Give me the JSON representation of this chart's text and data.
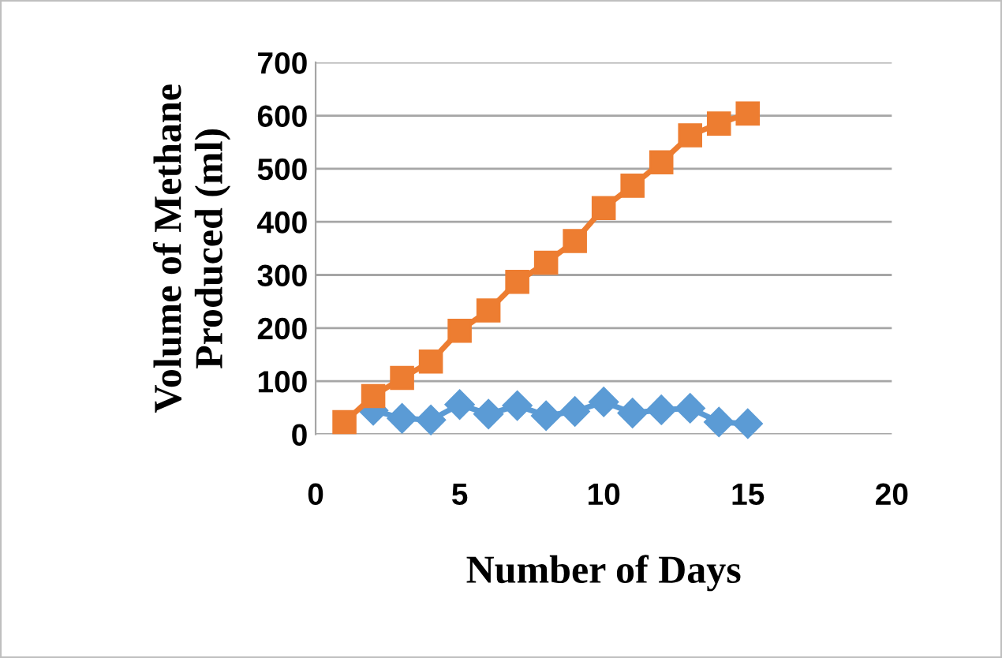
{
  "chart_data": {
    "type": "line",
    "xlabel": "Number of Days",
    "ylabel": "Volume of Methane\nProduced (ml)",
    "x": [
      1,
      2,
      3,
      4,
      5,
      6,
      7,
      8,
      9,
      10,
      11,
      12,
      13,
      14,
      15
    ],
    "series": [
      {
        "color": "#5b9bd5",
        "marker": "diamond",
        "values": [
          null,
          45,
          30,
          27,
          56,
          38,
          54,
          35,
          43,
          61,
          40,
          46,
          49,
          23,
          20
        ]
      },
      {
        "color": "#ed7d31",
        "marker": "square",
        "values": [
          23,
          72,
          106,
          137,
          195,
          233,
          287,
          323,
          364,
          426,
          468,
          512,
          563,
          585,
          604
        ]
      }
    ],
    "xlim": [
      0,
      20
    ],
    "xticks": [
      0,
      5,
      10,
      15,
      20
    ],
    "ylim": [
      0,
      700
    ],
    "yticks": [
      0,
      100,
      200,
      300,
      400,
      500,
      600,
      700
    ],
    "grid": "y",
    "legend": false
  }
}
